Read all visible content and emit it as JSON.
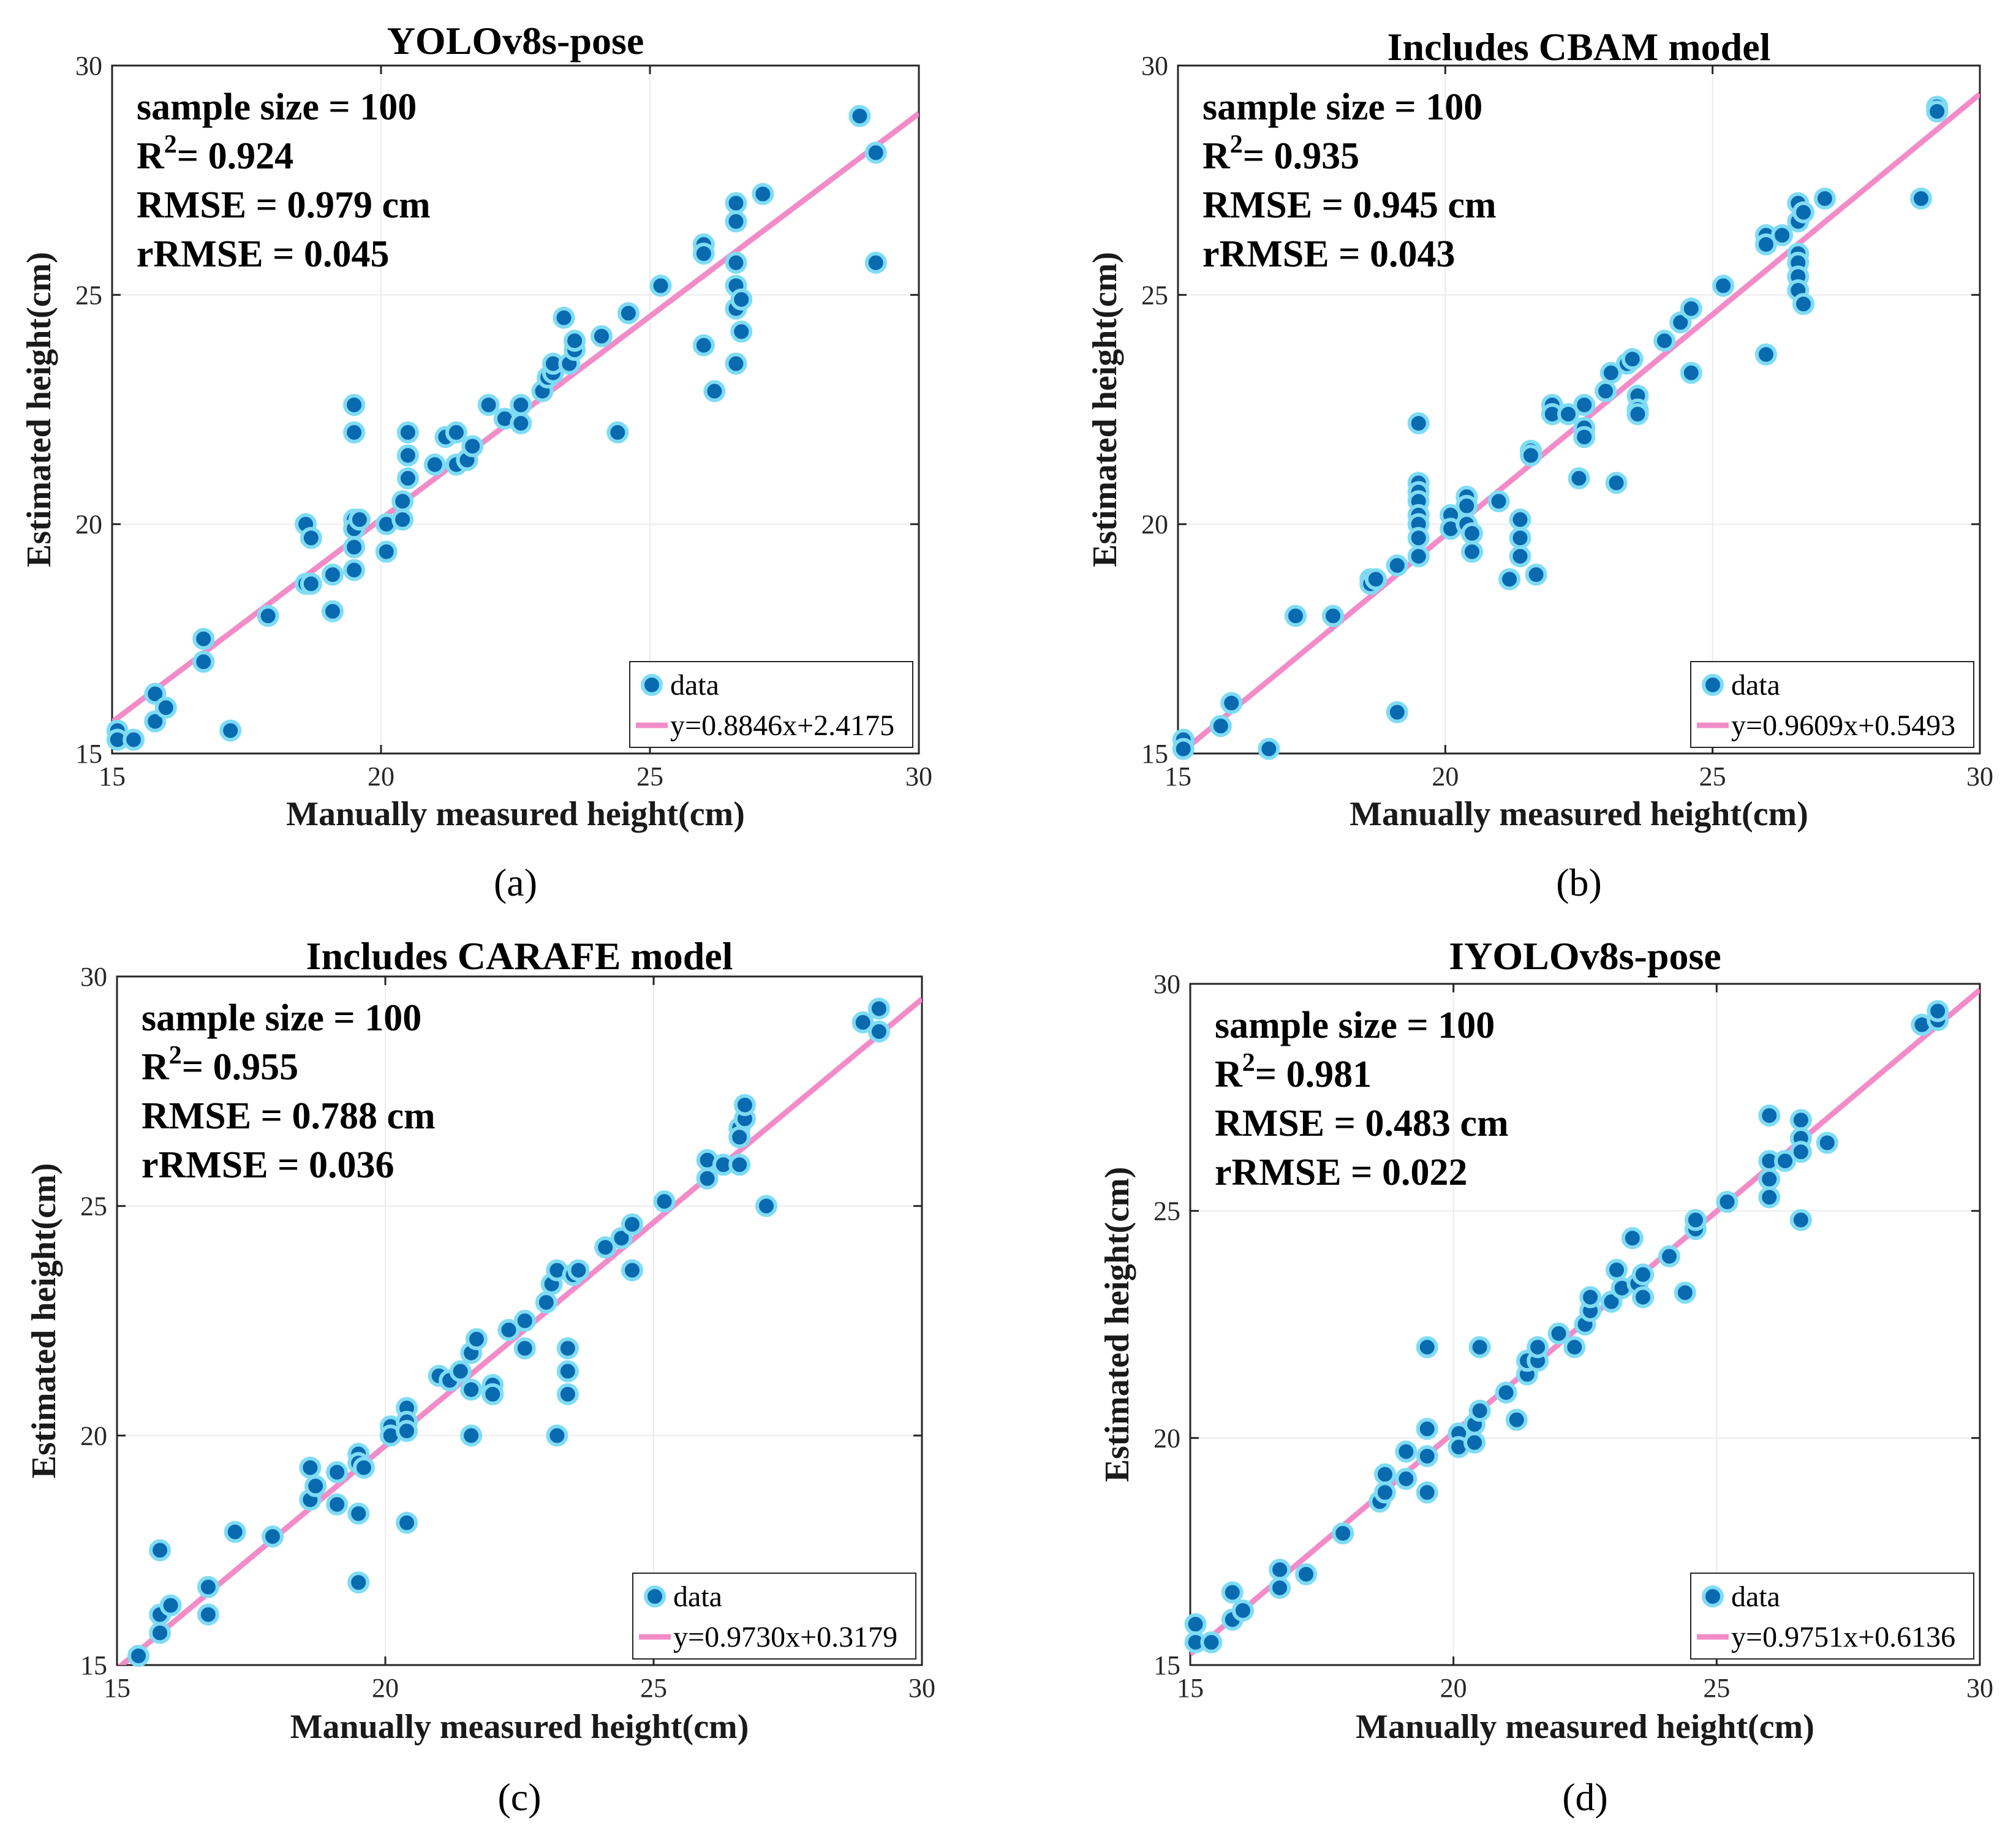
{
  "colors": {
    "point_fill": "#0a6ab0",
    "point_edge": "#7fdcf5",
    "fit_line": "#f28cc8",
    "grid": "#ececec",
    "frame": "#262626"
  },
  "chart_data": [
    {
      "type": "scatter",
      "panel_label": "(a)",
      "title": "YOLOv8s-pose",
      "xlabel": "Manually measured height(cm)",
      "ylabel": "Estimated height(cm)",
      "xlim": [
        15,
        30
      ],
      "ylim": [
        15,
        30
      ],
      "xticks": [
        "15",
        "20",
        "25",
        "30"
      ],
      "yticks": [
        "15",
        "20",
        "25",
        "30"
      ],
      "grid": true,
      "legend_position": "bottom-right",
      "stats": {
        "sample": "sample size = 100",
        "r2_label": "R",
        "r2_exp": "2",
        "r2_value": "= 0.924",
        "rmse": "RMSE = 0.979 cm",
        "rrmse": "rRMSE = 0.045"
      },
      "legend": {
        "data": "data",
        "fit": "y=0.8846x+2.4175"
      },
      "fit": {
        "slope": 0.8846,
        "intercept": 2.4175
      },
      "points": [
        [
          15.1,
          15.5
        ],
        [
          15.1,
          15.3
        ],
        [
          15.4,
          15.3
        ],
        [
          15.8,
          16.3
        ],
        [
          15.8,
          15.7
        ],
        [
          16.0,
          16.0
        ],
        [
          16.7,
          17.5
        ],
        [
          16.7,
          17.0
        ],
        [
          17.2,
          15.5
        ],
        [
          17.9,
          18.0
        ],
        [
          18.6,
          20.0
        ],
        [
          18.6,
          18.7
        ],
        [
          18.7,
          18.7
        ],
        [
          18.7,
          19.7
        ],
        [
          19.1,
          18.1
        ],
        [
          19.1,
          18.9
        ],
        [
          19.5,
          22.6
        ],
        [
          19.5,
          22.0
        ],
        [
          19.5,
          20.1
        ],
        [
          19.5,
          19.9
        ],
        [
          19.5,
          19.5
        ],
        [
          19.5,
          19.0
        ],
        [
          19.6,
          20.1
        ],
        [
          20.1,
          19.4
        ],
        [
          20.1,
          20.0
        ],
        [
          20.4,
          20.1
        ],
        [
          20.4,
          20.5
        ],
        [
          20.5,
          22.0
        ],
        [
          20.5,
          21.5
        ],
        [
          20.5,
          21.0
        ],
        [
          21.0,
          21.3
        ],
        [
          21.2,
          21.9
        ],
        [
          21.4,
          22.0
        ],
        [
          21.4,
          21.3
        ],
        [
          21.6,
          21.4
        ],
        [
          21.7,
          21.7
        ],
        [
          22.0,
          22.6
        ],
        [
          22.3,
          22.3
        ],
        [
          22.6,
          22.6
        ],
        [
          22.6,
          22.2
        ],
        [
          23.0,
          22.9
        ],
        [
          23.1,
          23.2
        ],
        [
          23.2,
          23.3
        ],
        [
          23.2,
          23.5
        ],
        [
          23.4,
          24.5
        ],
        [
          23.5,
          23.5
        ],
        [
          23.6,
          23.8
        ],
        [
          23.6,
          24.0
        ],
        [
          24.1,
          24.1
        ],
        [
          24.4,
          22.0
        ],
        [
          24.6,
          24.6
        ],
        [
          25.2,
          25.2
        ],
        [
          26.0,
          26.1
        ],
        [
          26.0,
          25.9
        ],
        [
          26.0,
          23.9
        ],
        [
          26.2,
          22.9
        ],
        [
          26.6,
          27.0
        ],
        [
          26.6,
          26.6
        ],
        [
          26.6,
          25.7
        ],
        [
          26.6,
          25.2
        ],
        [
          26.6,
          24.7
        ],
        [
          26.6,
          23.5
        ],
        [
          26.7,
          24.9
        ],
        [
          26.7,
          24.2
        ],
        [
          27.1,
          27.2
        ],
        [
          28.9,
          28.9
        ],
        [
          29.2,
          28.1
        ],
        [
          29.2,
          25.7
        ]
      ]
    },
    {
      "type": "scatter",
      "panel_label": "(b)",
      "title": "Includes CBAM model",
      "xlabel": "Manually measured height(cm)",
      "ylabel": "Estimated height(cm)",
      "xlim": [
        15,
        30
      ],
      "ylim": [
        15,
        30
      ],
      "xticks": [
        "15",
        "20",
        "25",
        "30"
      ],
      "yticks": [
        "15",
        "20",
        "25",
        "30"
      ],
      "grid": true,
      "legend_position": "bottom-right",
      "stats": {
        "sample": "sample size = 100",
        "r2_label": "R",
        "r2_exp": "2",
        "r2_value": "= 0.935",
        "rmse": "RMSE = 0.945 cm",
        "rrmse": "rRMSE = 0.043"
      },
      "legend": {
        "data": "data",
        "fit": "y=0.9609x+0.5493"
      },
      "fit": {
        "slope": 0.9609,
        "intercept": 0.5493
      },
      "points": [
        [
          15.1,
          15.3
        ],
        [
          15.1,
          15.1
        ],
        [
          15.8,
          15.6
        ],
        [
          16.0,
          16.1
        ],
        [
          16.7,
          15.1
        ],
        [
          17.2,
          18.0
        ],
        [
          17.9,
          18.0
        ],
        [
          18.6,
          18.8
        ],
        [
          18.6,
          18.7
        ],
        [
          18.7,
          18.8
        ],
        [
          19.1,
          19.1
        ],
        [
          19.1,
          15.9
        ],
        [
          19.5,
          22.2
        ],
        [
          19.5,
          20.9
        ],
        [
          19.5,
          20.7
        ],
        [
          19.5,
          20.5
        ],
        [
          19.5,
          20.2
        ],
        [
          19.5,
          20.0
        ],
        [
          19.5,
          19.7
        ],
        [
          19.5,
          19.3
        ],
        [
          20.1,
          20.2
        ],
        [
          20.1,
          19.9
        ],
        [
          20.4,
          20.6
        ],
        [
          20.4,
          20.4
        ],
        [
          20.4,
          20.0
        ],
        [
          20.5,
          19.8
        ],
        [
          20.5,
          19.4
        ],
        [
          21.0,
          20.5
        ],
        [
          21.2,
          18.8
        ],
        [
          21.4,
          20.1
        ],
        [
          21.4,
          19.7
        ],
        [
          21.4,
          19.3
        ],
        [
          21.6,
          21.6
        ],
        [
          21.6,
          21.5
        ],
        [
          21.7,
          18.9
        ],
        [
          22.0,
          22.6
        ],
        [
          22.0,
          22.4
        ],
        [
          22.3,
          22.4
        ],
        [
          22.5,
          21.0
        ],
        [
          22.6,
          22.6
        ],
        [
          22.6,
          22.1
        ],
        [
          22.6,
          21.9
        ],
        [
          23.0,
          22.9
        ],
        [
          23.1,
          23.3
        ],
        [
          23.2,
          20.9
        ],
        [
          23.4,
          23.5
        ],
        [
          23.5,
          23.6
        ],
        [
          23.6,
          22.8
        ],
        [
          23.6,
          22.5
        ],
        [
          23.6,
          22.4
        ],
        [
          24.1,
          24.0
        ],
        [
          24.4,
          24.4
        ],
        [
          24.6,
          24.7
        ],
        [
          24.6,
          23.3
        ],
        [
          25.2,
          25.2
        ],
        [
          26.0,
          26.3
        ],
        [
          26.0,
          26.1
        ],
        [
          26.0,
          23.7
        ],
        [
          26.3,
          26.3
        ],
        [
          26.6,
          27.0
        ],
        [
          26.6,
          26.6
        ],
        [
          26.6,
          25.9
        ],
        [
          26.6,
          25.7
        ],
        [
          26.6,
          25.4
        ],
        [
          26.6,
          25.1
        ],
        [
          26.7,
          26.8
        ],
        [
          26.7,
          24.8
        ],
        [
          27.1,
          27.1
        ],
        [
          28.9,
          27.1
        ],
        [
          29.2,
          29.1
        ],
        [
          29.2,
          29.0
        ]
      ]
    },
    {
      "type": "scatter",
      "panel_label": "(c)",
      "title": "Includes CARAFE model",
      "xlabel": "Manually measured height(cm)",
      "ylabel": "Estimated height(cm)",
      "xlim": [
        15,
        30
      ],
      "ylim": [
        15,
        30
      ],
      "xticks": [
        "15",
        "20",
        "25",
        "30"
      ],
      "yticks": [
        "15",
        "20",
        "25",
        "30"
      ],
      "grid": true,
      "legend_position": "bottom-right",
      "stats": {
        "sample": "sample size = 100",
        "r2_label": "R",
        "r2_exp": "2",
        "r2_value": "= 0.955",
        "rmse": "RMSE = 0.788 cm",
        "rrmse": "rRMSE = 0.036"
      },
      "legend": {
        "data": "data",
        "fit": "y=0.9730x+0.3179"
      },
      "fit": {
        "slope": 0.973,
        "intercept": 0.3179
      },
      "points": [
        [
          15.4,
          15.2
        ],
        [
          15.8,
          15.7
        ],
        [
          15.8,
          16.1
        ],
        [
          15.8,
          17.5
        ],
        [
          16.0,
          16.3
        ],
        [
          16.7,
          16.7
        ],
        [
          16.7,
          16.1
        ],
        [
          17.2,
          17.9
        ],
        [
          17.9,
          17.8
        ],
        [
          18.6,
          19.3
        ],
        [
          18.6,
          18.6
        ],
        [
          18.7,
          18.9
        ],
        [
          19.1,
          19.2
        ],
        [
          19.1,
          18.5
        ],
        [
          19.5,
          19.6
        ],
        [
          19.5,
          19.4
        ],
        [
          19.5,
          18.3
        ],
        [
          19.5,
          16.8
        ],
        [
          19.6,
          19.3
        ],
        [
          20.1,
          20.2
        ],
        [
          20.1,
          20.0
        ],
        [
          20.4,
          20.6
        ],
        [
          20.4,
          20.3
        ],
        [
          20.4,
          20.1
        ],
        [
          20.4,
          18.1
        ],
        [
          21.0,
          21.3
        ],
        [
          21.2,
          21.2
        ],
        [
          21.4,
          21.4
        ],
        [
          21.6,
          21.8
        ],
        [
          21.6,
          21.0
        ],
        [
          21.6,
          20.0
        ],
        [
          21.7,
          22.1
        ],
        [
          22.0,
          21.1
        ],
        [
          22.0,
          20.9
        ],
        [
          22.3,
          22.3
        ],
        [
          22.6,
          22.5
        ],
        [
          22.6,
          21.9
        ],
        [
          23.0,
          22.9
        ],
        [
          23.1,
          23.3
        ],
        [
          23.2,
          23.6
        ],
        [
          23.2,
          20.0
        ],
        [
          23.4,
          21.9
        ],
        [
          23.4,
          21.4
        ],
        [
          23.4,
          20.9
        ],
        [
          23.5,
          23.5
        ],
        [
          23.6,
          23.6
        ],
        [
          24.1,
          24.1
        ],
        [
          24.4,
          24.3
        ],
        [
          24.6,
          24.6
        ],
        [
          24.6,
          23.6
        ],
        [
          25.2,
          25.1
        ],
        [
          26.0,
          26.0
        ],
        [
          26.0,
          25.6
        ],
        [
          26.3,
          25.9
        ],
        [
          26.6,
          26.7
        ],
        [
          26.6,
          26.5
        ],
        [
          26.6,
          25.9
        ],
        [
          26.7,
          26.9
        ],
        [
          26.7,
          27.2
        ],
        [
          27.1,
          25.0
        ],
        [
          28.9,
          29.0
        ],
        [
          29.2,
          29.3
        ],
        [
          29.2,
          28.8
        ]
      ]
    },
    {
      "type": "scatter",
      "panel_label": "(d)",
      "title": "IYOLOv8s-pose",
      "xlabel": "Manually measured height(cm)",
      "ylabel": "Estimated height(cm)",
      "xlim": [
        15,
        30
      ],
      "ylim": [
        15,
        30
      ],
      "xticks": [
        "15",
        "20",
        "25",
        "30"
      ],
      "yticks": [
        "15",
        "20",
        "25",
        "30"
      ],
      "grid": true,
      "legend_position": "bottom-right",
      "stats": {
        "sample": "sample size = 100",
        "r2_label": "R",
        "r2_exp": "2",
        "r2_value": "= 0.981",
        "rmse": "RMSE = 0.483 cm",
        "rrmse": "rRMSE = 0.022"
      },
      "legend": {
        "data": "data",
        "fit": "y=0.9751x+0.6136"
      },
      "fit": {
        "slope": 0.9751,
        "intercept": 0.6136
      },
      "points": [
        [
          15.1,
          15.9
        ],
        [
          15.1,
          15.5
        ],
        [
          15.4,
          15.5
        ],
        [
          15.8,
          16.6
        ],
        [
          15.8,
          16.0
        ],
        [
          16.0,
          16.2
        ],
        [
          16.7,
          17.1
        ],
        [
          16.7,
          16.7
        ],
        [
          17.2,
          17.0
        ],
        [
          17.9,
          17.9
        ],
        [
          18.6,
          18.6
        ],
        [
          18.7,
          19.2
        ],
        [
          18.7,
          18.8
        ],
        [
          19.1,
          19.7
        ],
        [
          19.1,
          19.1
        ],
        [
          19.5,
          22.0
        ],
        [
          19.5,
          20.2
        ],
        [
          19.5,
          19.6
        ],
        [
          19.5,
          18.8
        ],
        [
          20.1,
          20.1
        ],
        [
          20.1,
          19.8
        ],
        [
          20.4,
          19.9
        ],
        [
          20.4,
          20.3
        ],
        [
          20.5,
          22.0
        ],
        [
          20.5,
          20.6
        ],
        [
          21.0,
          21.0
        ],
        [
          21.2,
          20.4
        ],
        [
          21.4,
          21.4
        ],
        [
          21.4,
          21.7
        ],
        [
          21.6,
          21.7
        ],
        [
          21.6,
          22.0
        ],
        [
          22.0,
          22.3
        ],
        [
          22.3,
          22.0
        ],
        [
          22.5,
          22.5
        ],
        [
          22.6,
          22.8
        ],
        [
          22.6,
          23.1
        ],
        [
          23.0,
          23.0
        ],
        [
          23.1,
          23.7
        ],
        [
          23.2,
          23.3
        ],
        [
          23.4,
          24.4
        ],
        [
          23.5,
          23.4
        ],
        [
          23.6,
          23.1
        ],
        [
          23.6,
          23.6
        ],
        [
          24.1,
          24.0
        ],
        [
          24.4,
          23.2
        ],
        [
          24.6,
          24.6
        ],
        [
          24.6,
          24.8
        ],
        [
          25.2,
          25.2
        ],
        [
          26.0,
          27.1
        ],
        [
          26.0,
          26.1
        ],
        [
          26.0,
          25.7
        ],
        [
          26.0,
          25.3
        ],
        [
          26.3,
          26.1
        ],
        [
          26.6,
          27.0
        ],
        [
          26.6,
          26.6
        ],
        [
          26.6,
          26.3
        ],
        [
          26.6,
          24.8
        ],
        [
          27.1,
          26.5
        ],
        [
          28.9,
          29.1
        ],
        [
          29.2,
          29.2
        ],
        [
          29.2,
          29.4
        ]
      ]
    }
  ]
}
